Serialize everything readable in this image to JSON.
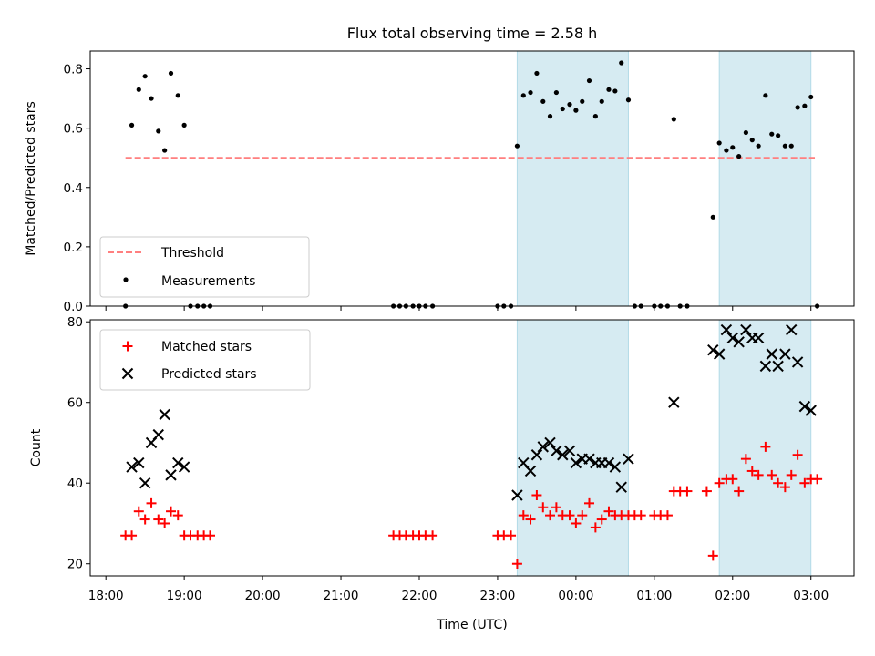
{
  "chart_data": [
    {
      "type": "scatter",
      "title": "Flux total observing time = 2.58 h",
      "xlabel": "",
      "ylabel": "Matched/Predicted stars",
      "ylim": [
        0,
        0.86
      ],
      "yticks": [
        "0.0",
        "0.2",
        "0.4",
        "0.6",
        "0.8"
      ],
      "ytick_values": [
        0,
        0.2,
        0.4,
        0.6,
        0.8
      ],
      "xlim_hours": [
        17.8,
        27.55
      ],
      "xtick_hours": [
        18,
        19,
        20,
        21,
        22,
        23,
        24,
        25,
        26,
        27
      ],
      "shaded_intervals_hours": [
        [
          23.25,
          24.67
        ],
        [
          25.83,
          27.0
        ]
      ],
      "shade_color": "#add8e6",
      "threshold": {
        "name": "Threshold",
        "value": 0.5,
        "x_range": [
          18.25,
          27.05
        ],
        "color": "#ff7f7f"
      },
      "series": [
        {
          "name": "Measurements",
          "color": "#000000",
          "points": [
            [
              18.25,
              0.0
            ],
            [
              18.33,
              0.61
            ],
            [
              18.42,
              0.73
            ],
            [
              18.5,
              0.775
            ],
            [
              18.58,
              0.7
            ],
            [
              18.67,
              0.59
            ],
            [
              18.75,
              0.525
            ],
            [
              18.83,
              0.785
            ],
            [
              18.92,
              0.71
            ],
            [
              19.0,
              0.61
            ],
            [
              19.08,
              0.0
            ],
            [
              19.17,
              0.0
            ],
            [
              19.25,
              0.0
            ],
            [
              19.33,
              0.0
            ],
            [
              21.67,
              0.0
            ],
            [
              21.75,
              0.0
            ],
            [
              21.83,
              0.0
            ],
            [
              21.92,
              0.0
            ],
            [
              22.0,
              0.0
            ],
            [
              22.08,
              0.0
            ],
            [
              22.17,
              0.0
            ],
            [
              23.0,
              0.0
            ],
            [
              23.08,
              0.0
            ],
            [
              23.17,
              0.0
            ],
            [
              23.25,
              0.54
            ],
            [
              23.33,
              0.71
            ],
            [
              23.42,
              0.72
            ],
            [
              23.5,
              0.785
            ],
            [
              23.58,
              0.69
            ],
            [
              23.67,
              0.64
            ],
            [
              23.75,
              0.72
            ],
            [
              23.83,
              0.665
            ],
            [
              23.92,
              0.68
            ],
            [
              24.0,
              0.66
            ],
            [
              24.08,
              0.69
            ],
            [
              24.17,
              0.76
            ],
            [
              24.25,
              0.64
            ],
            [
              24.33,
              0.69
            ],
            [
              24.42,
              0.73
            ],
            [
              24.5,
              0.725
            ],
            [
              24.58,
              0.82
            ],
            [
              24.67,
              0.695
            ],
            [
              24.75,
              0.0
            ],
            [
              24.83,
              0.0
            ],
            [
              25.0,
              0.0
            ],
            [
              25.08,
              0.0
            ],
            [
              25.17,
              0.0
            ],
            [
              25.25,
              0.63
            ],
            [
              25.33,
              0.0
            ],
            [
              25.42,
              0.0
            ],
            [
              25.75,
              0.3
            ],
            [
              25.83,
              0.55
            ],
            [
              25.92,
              0.525
            ],
            [
              26.0,
              0.535
            ],
            [
              26.08,
              0.505
            ],
            [
              26.17,
              0.585
            ],
            [
              26.25,
              0.56
            ],
            [
              26.33,
              0.54
            ],
            [
              26.42,
              0.71
            ],
            [
              26.5,
              0.58
            ],
            [
              26.58,
              0.575
            ],
            [
              26.67,
              0.54
            ],
            [
              26.75,
              0.54
            ],
            [
              26.83,
              0.67
            ],
            [
              26.92,
              0.675
            ],
            [
              27.0,
              0.705
            ],
            [
              27.08,
              0.0
            ]
          ]
        }
      ],
      "legend": {
        "placement": "lower-left",
        "entries": [
          "Threshold",
          "Measurements"
        ]
      }
    },
    {
      "type": "scatter",
      "title": "",
      "xlabel": "Time (UTC)",
      "ylabel": "Count",
      "ylim": [
        17,
        80.5
      ],
      "yticks": [
        "20",
        "40",
        "60",
        "80"
      ],
      "ytick_values": [
        20,
        40,
        60,
        80
      ],
      "xlim_hours": [
        17.8,
        27.55
      ],
      "xtick_hours": [
        18,
        19,
        20,
        21,
        22,
        23,
        24,
        25,
        26,
        27
      ],
      "xtick_labels": [
        "18:00",
        "19:00",
        "20:00",
        "21:00",
        "22:00",
        "23:00",
        "00:00",
        "01:00",
        "02:00",
        "03:00"
      ],
      "shaded_intervals_hours": [
        [
          23.25,
          24.67
        ],
        [
          25.83,
          27.0
        ]
      ],
      "shade_color": "#add8e6",
      "series": [
        {
          "name": "Matched stars",
          "color": "#ff0000",
          "marker": "plus",
          "points": [
            [
              18.25,
              27
            ],
            [
              18.33,
              27
            ],
            [
              18.42,
              33
            ],
            [
              18.5,
              31
            ],
            [
              18.58,
              35
            ],
            [
              18.67,
              31
            ],
            [
              18.75,
              30
            ],
            [
              18.83,
              33
            ],
            [
              18.92,
              32
            ],
            [
              19.0,
              27
            ],
            [
              19.08,
              27
            ],
            [
              19.17,
              27
            ],
            [
              19.25,
              27
            ],
            [
              19.33,
              27
            ],
            [
              21.67,
              27
            ],
            [
              21.75,
              27
            ],
            [
              21.83,
              27
            ],
            [
              21.92,
              27
            ],
            [
              22.0,
              27
            ],
            [
              22.08,
              27
            ],
            [
              22.17,
              27
            ],
            [
              23.0,
              27
            ],
            [
              23.08,
              27
            ],
            [
              23.17,
              27
            ],
            [
              23.25,
              20
            ],
            [
              23.33,
              32
            ],
            [
              23.42,
              31
            ],
            [
              23.5,
              37
            ],
            [
              23.58,
              34
            ],
            [
              23.67,
              32
            ],
            [
              23.75,
              34
            ],
            [
              23.83,
              32
            ],
            [
              23.92,
              32
            ],
            [
              24.0,
              30
            ],
            [
              24.08,
              32
            ],
            [
              24.17,
              35
            ],
            [
              24.25,
              29
            ],
            [
              24.33,
              31
            ],
            [
              24.42,
              33
            ],
            [
              24.5,
              32
            ],
            [
              24.58,
              32
            ],
            [
              24.67,
              32
            ],
            [
              24.75,
              32
            ],
            [
              24.83,
              32
            ],
            [
              25.0,
              32
            ],
            [
              25.08,
              32
            ],
            [
              25.17,
              32
            ],
            [
              25.25,
              38
            ],
            [
              25.33,
              38
            ],
            [
              25.42,
              38
            ],
            [
              25.75,
              22
            ],
            [
              25.67,
              38
            ],
            [
              25.83,
              40
            ],
            [
              25.92,
              41
            ],
            [
              26.0,
              41
            ],
            [
              26.08,
              38
            ],
            [
              26.17,
              46
            ],
            [
              26.25,
              43
            ],
            [
              26.33,
              42
            ],
            [
              26.42,
              49
            ],
            [
              26.5,
              42
            ],
            [
              26.58,
              40
            ],
            [
              26.67,
              39
            ],
            [
              26.75,
              42
            ],
            [
              26.83,
              47
            ],
            [
              26.92,
              40
            ],
            [
              27.0,
              41
            ],
            [
              27.08,
              41
            ]
          ]
        },
        {
          "name": "Predicted stars",
          "color": "#000000",
          "marker": "x",
          "points": [
            [
              18.33,
              44
            ],
            [
              18.42,
              45
            ],
            [
              18.5,
              40
            ],
            [
              18.58,
              50
            ],
            [
              18.67,
              52
            ],
            [
              18.75,
              57
            ],
            [
              18.83,
              42
            ],
            [
              18.92,
              45
            ],
            [
              19.0,
              44
            ],
            [
              23.25,
              37
            ],
            [
              23.33,
              45
            ],
            [
              23.42,
              43
            ],
            [
              23.5,
              47
            ],
            [
              23.58,
              49
            ],
            [
              23.67,
              50
            ],
            [
              23.75,
              48
            ],
            [
              23.83,
              47
            ],
            [
              23.92,
              48
            ],
            [
              24.0,
              45
            ],
            [
              24.08,
              46
            ],
            [
              24.17,
              46
            ],
            [
              24.25,
              45
            ],
            [
              24.33,
              45
            ],
            [
              24.42,
              45
            ],
            [
              24.5,
              44
            ],
            [
              24.58,
              39
            ],
            [
              24.67,
              46
            ],
            [
              25.25,
              60
            ],
            [
              25.75,
              73
            ],
            [
              25.83,
              72
            ],
            [
              25.92,
              78
            ],
            [
              26.0,
              76
            ],
            [
              26.08,
              75
            ],
            [
              26.17,
              78
            ],
            [
              26.25,
              76
            ],
            [
              26.33,
              76
            ],
            [
              26.42,
              69
            ],
            [
              26.5,
              72
            ],
            [
              26.58,
              69
            ],
            [
              26.67,
              72
            ],
            [
              26.75,
              78
            ],
            [
              26.83,
              70
            ],
            [
              26.92,
              59
            ],
            [
              27.0,
              58
            ]
          ]
        }
      ],
      "legend": {
        "placement": "top-left",
        "entries": [
          "Matched stars",
          "Predicted stars"
        ]
      }
    }
  ]
}
